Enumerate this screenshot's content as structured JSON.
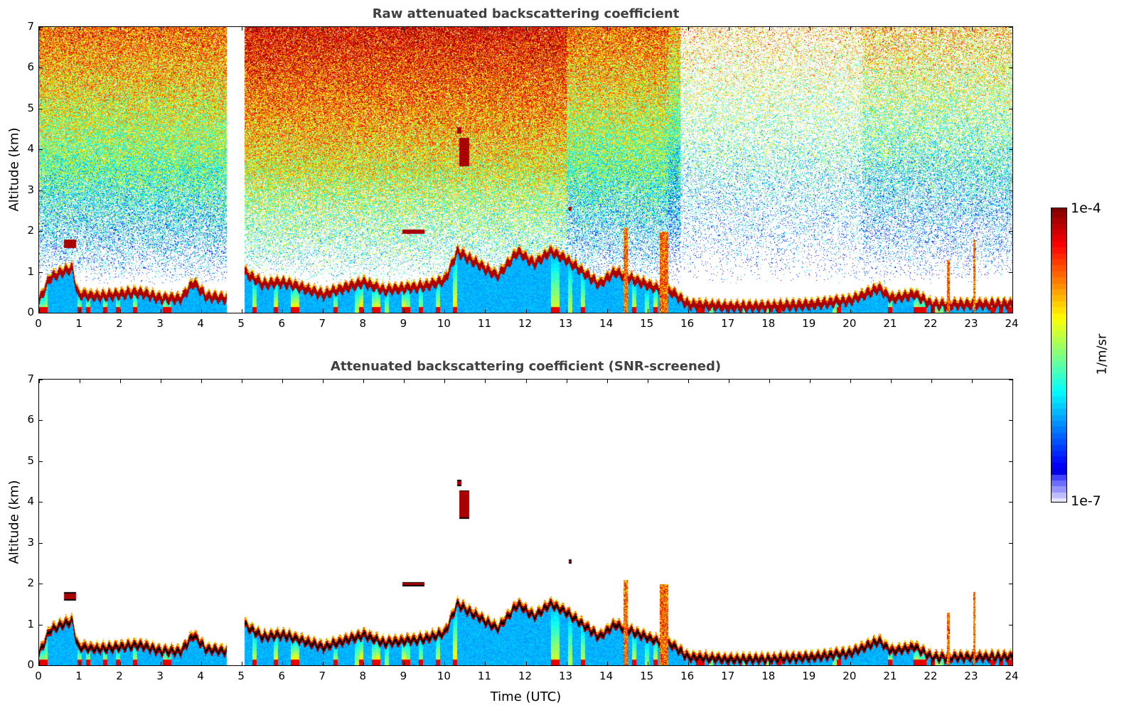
{
  "chart_data": [
    {
      "type": "heatmap",
      "title": "Raw attenuated backscattering coefficient",
      "xlabel": "",
      "ylabel": "Altitude (km)",
      "xlim": [
        0,
        24
      ],
      "ylim": [
        0,
        7
      ],
      "xticks": [
        "0",
        "1",
        "2",
        "3",
        "4",
        "5",
        "6",
        "7",
        "8",
        "9",
        "10",
        "11",
        "12",
        "13",
        "14",
        "15",
        "16",
        "17",
        "18",
        "19",
        "20",
        "21",
        "22",
        "23",
        "24"
      ],
      "yticks": [
        "0",
        "1",
        "2",
        "3",
        "4",
        "5",
        "6",
        "7"
      ],
      "missing_data_utc": [
        4.62,
        5.05
      ],
      "noise_above_layer": true
    },
    {
      "type": "heatmap",
      "title": "Attenuated backscattering coefficient (SNR-screened)",
      "xlabel": "Time (UTC)",
      "ylabel": "Altitude (km)",
      "xlim": [
        0,
        24
      ],
      "ylim": [
        0,
        7
      ],
      "xticks": [
        "0",
        "1",
        "2",
        "3",
        "4",
        "5",
        "6",
        "7",
        "8",
        "9",
        "10",
        "11",
        "12",
        "13",
        "14",
        "15",
        "16",
        "17",
        "18",
        "19",
        "20",
        "21",
        "22",
        "23",
        "24"
      ],
      "yticks": [
        "0",
        "1",
        "2",
        "3",
        "4",
        "5",
        "6",
        "7"
      ],
      "missing_data_utc": [
        4.62,
        5.05
      ],
      "noise_above_layer": false
    }
  ],
  "boundary_layer_top_km": [
    {
      "t": 0,
      "z": 0.3
    },
    {
      "t": 0.25,
      "z": 0.85
    },
    {
      "t": 0.8,
      "z": 1.1
    },
    {
      "t": 0.95,
      "z": 0.45
    },
    {
      "t": 1.5,
      "z": 0.4
    },
    {
      "t": 2,
      "z": 0.45
    },
    {
      "t": 2.5,
      "z": 0.5
    },
    {
      "t": 3,
      "z": 0.35
    },
    {
      "t": 3.5,
      "z": 0.35
    },
    {
      "t": 3.8,
      "z": 0.75
    },
    {
      "t": 4.1,
      "z": 0.4
    },
    {
      "t": 4.6,
      "z": 0.35
    },
    {
      "t": 5.05,
      "z": 1.0
    },
    {
      "t": 5.5,
      "z": 0.7
    },
    {
      "t": 6,
      "z": 0.75
    },
    {
      "t": 6.5,
      "z": 0.6
    },
    {
      "t": 7,
      "z": 0.45
    },
    {
      "t": 7.5,
      "z": 0.6
    },
    {
      "t": 8,
      "z": 0.75
    },
    {
      "t": 8.5,
      "z": 0.55
    },
    {
      "t": 9,
      "z": 0.6
    },
    {
      "t": 9.5,
      "z": 0.65
    },
    {
      "t": 10,
      "z": 0.8
    },
    {
      "t": 10.3,
      "z": 1.5
    },
    {
      "t": 10.8,
      "z": 1.2
    },
    {
      "t": 11.3,
      "z": 0.9
    },
    {
      "t": 11.8,
      "z": 1.5
    },
    {
      "t": 12.2,
      "z": 1.2
    },
    {
      "t": 12.6,
      "z": 1.5
    },
    {
      "t": 13,
      "z": 1.3
    },
    {
      "t": 13.4,
      "z": 1.0
    },
    {
      "t": 13.8,
      "z": 0.7
    },
    {
      "t": 14.2,
      "z": 1.0
    },
    {
      "t": 14.7,
      "z": 0.8
    },
    {
      "t": 15.2,
      "z": 0.6
    },
    {
      "t": 15.6,
      "z": 0.5
    },
    {
      "t": 16,
      "z": 0.2
    },
    {
      "t": 17,
      "z": 0.15
    },
    {
      "t": 18,
      "z": 0.15
    },
    {
      "t": 19,
      "z": 0.2
    },
    {
      "t": 20,
      "z": 0.3
    },
    {
      "t": 20.7,
      "z": 0.6
    },
    {
      "t": 21,
      "z": 0.35
    },
    {
      "t": 21.6,
      "z": 0.45
    },
    {
      "t": 22,
      "z": 0.2
    },
    {
      "t": 23,
      "z": 0.2
    },
    {
      "t": 24,
      "z": 0.2
    }
  ],
  "cloud_features": [
    {
      "t0": 0.6,
      "t1": 0.9,
      "z0": 1.6,
      "z1": 1.8
    },
    {
      "t0": 8.95,
      "t1": 9.5,
      "z0": 1.95,
      "z1": 2.05
    },
    {
      "t0": 10.3,
      "t1": 10.4,
      "z0": 4.4,
      "z1": 4.55
    },
    {
      "t0": 10.35,
      "t1": 10.6,
      "z0": 3.6,
      "z1": 4.3
    },
    {
      "t0": 13.05,
      "t1": 13.12,
      "z0": 2.5,
      "z1": 2.6
    },
    {
      "t0": 14.4,
      "t1": 14.5,
      "z0": 0.0,
      "z1": 2.1
    },
    {
      "t0": 15.3,
      "t1": 15.5,
      "z0": 0.0,
      "z1": 2.0
    },
    {
      "t0": 22.38,
      "t1": 22.45,
      "z0": 0.0,
      "z1": 1.3
    },
    {
      "t0": 23.03,
      "t1": 23.08,
      "z0": 0.0,
      "z1": 1.8
    }
  ],
  "colorbar": {
    "label": "1/m/sr",
    "min_label": "1e-7",
    "max_label": "1e-4",
    "range": [
      1e-07,
      0.0001
    ],
    "scale": "log",
    "colormap": "jet"
  }
}
